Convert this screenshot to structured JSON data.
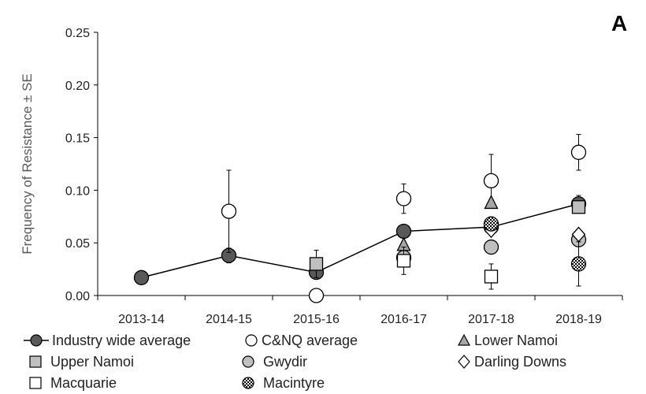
{
  "panel_label": "A",
  "chart_data": {
    "type": "scatter",
    "title": "",
    "xlabel": "",
    "ylabel": "Frequency of Resistance ± SE",
    "categories": [
      "2013-14",
      "2014-15",
      "2015-16",
      "2016-17",
      "2017-18",
      "2018-19"
    ],
    "ylim": [
      0,
      0.25
    ],
    "yticks": [
      "0.00",
      "0.05",
      "0.10",
      "0.15",
      "0.20",
      "0.25"
    ],
    "grid": false,
    "legend_position": "bottom",
    "series": [
      {
        "name": "Industry wide average",
        "marker": "circle",
        "fill": "#595959",
        "stroke": "#000000",
        "line": true,
        "values": [
          0.017,
          0.038,
          0.022,
          0.061,
          0.065,
          0.087
        ],
        "errors": [
          null,
          0.007,
          null,
          null,
          null,
          0.008
        ]
      },
      {
        "name": "C&NQ average",
        "marker": "circle",
        "fill": "#ffffff",
        "stroke": "#000000",
        "line": false,
        "values": [
          null,
          0.08,
          0.0,
          0.092,
          0.109,
          0.136
        ],
        "errors": [
          null,
          0.039,
          null,
          0.014,
          0.025,
          0.017
        ]
      },
      {
        "name": "Lower Namoi",
        "marker": "triangle",
        "fill": "#a6a6a6",
        "stroke": "#000000",
        "line": false,
        "values": [
          null,
          null,
          null,
          0.048,
          0.088,
          null
        ],
        "errors": [
          null,
          null,
          null,
          null,
          null,
          null
        ]
      },
      {
        "name": "Upper Namoi",
        "marker": "square",
        "fill": "#bfbfbf",
        "stroke": "#000000",
        "line": false,
        "values": [
          null,
          null,
          0.03,
          null,
          null,
          0.084
        ],
        "errors": [
          null,
          null,
          0.013,
          null,
          null,
          null
        ]
      },
      {
        "name": "Gwydir",
        "marker": "circle",
        "fill": "#bfbfbf",
        "stroke": "#000000",
        "line": false,
        "values": [
          null,
          null,
          null,
          0.036,
          0.046,
          0.053
        ],
        "errors": [
          null,
          null,
          null,
          null,
          null,
          null
        ]
      },
      {
        "name": "Darling Downs",
        "marker": "diamond",
        "fill": "#ffffff",
        "stroke": "#000000",
        "line": false,
        "values": [
          null,
          null,
          null,
          null,
          0.062,
          0.058
        ],
        "errors": [
          null,
          null,
          null,
          null,
          null,
          null
        ]
      },
      {
        "name": "Macquarie",
        "marker": "square",
        "fill": "#ffffff",
        "stroke": "#000000",
        "line": false,
        "values": [
          null,
          null,
          null,
          0.033,
          0.018,
          null
        ],
        "errors": [
          null,
          null,
          null,
          0.013,
          0.012,
          null
        ]
      },
      {
        "name": "Macintyre",
        "marker": "circle",
        "fill": "pattern",
        "stroke": "#000000",
        "line": false,
        "values": [
          null,
          null,
          null,
          null,
          0.068,
          0.03
        ],
        "errors": [
          null,
          null,
          null,
          null,
          null,
          0.021
        ]
      }
    ]
  },
  "legend": [
    {
      "label": "Industry wide average",
      "icon": "line-circle-dark-icon"
    },
    {
      "label": "C&NQ average",
      "icon": "circle-white-icon"
    },
    {
      "label": "Lower Namoi",
      "icon": "triangle-grey-icon"
    },
    {
      "label": "Upper Namoi",
      "icon": "square-grey-icon"
    },
    {
      "label": "Gwydir",
      "icon": "circle-grey-icon"
    },
    {
      "label": "Darling Downs",
      "icon": "diamond-white-icon"
    },
    {
      "label": "Macquarie",
      "icon": "square-white-icon"
    },
    {
      "label": "Macintyre",
      "icon": "circle-checkered-icon"
    }
  ]
}
